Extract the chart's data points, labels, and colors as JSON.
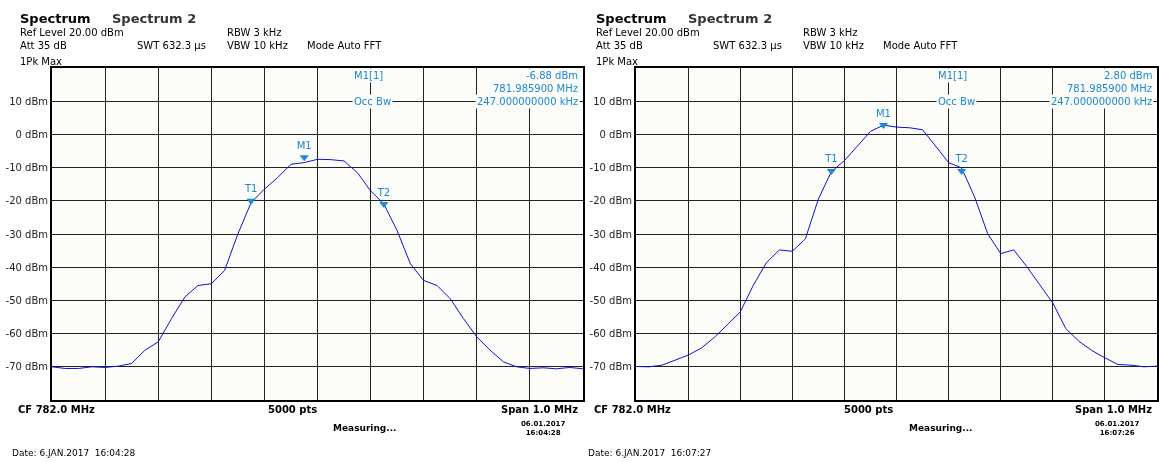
{
  "chart_data": [
    {
      "type": "line",
      "categories": [
        null,
        null,
        null,
        null,
        null,
        null,
        null,
        null,
        null,
        null,
        null,
        null,
        null,
        null,
        null,
        null,
        null,
        null,
        null,
        null,
        null,
        null,
        null,
        null,
        null,
        null,
        null,
        null,
        null,
        null,
        null,
        null,
        null,
        null,
        null,
        null,
        null,
        null,
        null,
        null,
        null
      ],
      "series": [
        {
          "color": "#1010e0",
          "values": [
            -70,
            -70.5,
            -70.5,
            -70,
            -70.2,
            -69.8,
            -69,
            -65,
            -62.5,
            -55.5,
            -49,
            -45.5,
            -45,
            -41,
            -30,
            -20.5,
            -16.5,
            -13,
            -9,
            -8.5,
            -7.5,
            -7.6,
            -8,
            -11.5,
            -17,
            -21,
            -29,
            -39,
            -44,
            -45.5,
            -49.5,
            -55.5,
            -61,
            -65,
            -68.5,
            -70,
            -70.5,
            -70.3,
            -70.6,
            -70.2,
            -70.6
          ]
        },
        {
          "type": "scatter",
          "color": "#1a8ad4",
          "marker": "triangle",
          "values": [
            null,
            null,
            null,
            null,
            null,
            null,
            null,
            null,
            null,
            null,
            null,
            null,
            null,
            null,
            null,
            -20,
            null,
            null,
            null,
            -6.88,
            null,
            null,
            null,
            null,
            null,
            -21,
            null,
            null,
            null,
            null,
            null,
            null,
            null,
            null,
            null,
            null,
            null,
            null,
            null,
            null,
            null
          ],
          "value_labels": [
            null,
            null,
            null,
            null,
            null,
            null,
            null,
            null,
            null,
            null,
            null,
            null,
            null,
            null,
            null,
            "T1",
            null,
            null,
            null,
            "M1",
            null,
            null,
            null,
            null,
            null,
            "T2",
            null,
            null,
            null,
            null,
            null,
            null,
            null,
            null,
            null,
            null,
            null,
            null,
            null,
            null,
            null
          ]
        }
      ],
      "ylim": [
        -80,
        20
      ],
      "yticks": [
        {
          "value": 10,
          "label": "10 dBm"
        },
        {
          "value": 0,
          "label": "0 dBm"
        },
        {
          "value": -10,
          "label": "-10 dBm"
        },
        {
          "value": -20,
          "label": "-20 dBm"
        },
        {
          "value": -30,
          "label": "-30 dBm"
        },
        {
          "value": -40,
          "label": "-40 dBm"
        },
        {
          "value": -50,
          "label": "-50 dBm"
        },
        {
          "value": -60,
          "label": "-60 dBm"
        },
        {
          "value": -70,
          "label": "-70 dBm"
        }
      ],
      "grid": true,
      "tick_labels": "y",
      "annotations": [
        "Spectrum",
        "Spectrum 2",
        "Ref Level 20.00 dBm",
        "Att 35 dB",
        "SWT 632.3 µs",
        "RBW 3 kHz",
        "VBW 10 kHz",
        "Mode Auto FFT",
        "1Pk Max",
        "M1[1]",
        "-6.88 dBm",
        "781.985900 MHz",
        "Occ Bw",
        "247.000000000 kHz",
        "CF 782.0 MHz",
        "5000 pts",
        "Span 1.0 MHz",
        "Measuring...",
        "06.01.2017\n16:04:28",
        "Date: 6.JAN.2017  16:04:28"
      ]
    },
    {
      "type": "line",
      "categories": [
        null,
        null,
        null,
        null,
        null,
        null,
        null,
        null,
        null,
        null,
        null,
        null,
        null,
        null,
        null,
        null,
        null,
        null,
        null,
        null,
        null,
        null,
        null,
        null,
        null,
        null,
        null,
        null,
        null,
        null,
        null,
        null,
        null,
        null,
        null,
        null,
        null,
        null,
        null,
        null,
        null
      ],
      "series": [
        {
          "color": "#1010e0",
          "values": [
            -69.9,
            -70,
            -69.5,
            -68,
            -66.5,
            -64.4,
            -61.2,
            -57.4,
            -53.5,
            -45.5,
            -38.7,
            -34.8,
            -35.2,
            -31.5,
            -19.5,
            -11.2,
            -7.9,
            -3.5,
            0.9,
            2.8,
            2.2,
            2,
            1.4,
            -3.5,
            -8.5,
            -10.1,
            -18.9,
            -29.9,
            -35.9,
            -34.8,
            -39.8,
            -45.3,
            -50.8,
            -58.5,
            -62.3,
            -65.1,
            -67.3,
            -69.3,
            -69.5,
            -70,
            -69.8
          ]
        },
        {
          "type": "scatter",
          "color": "#1a8ad4",
          "marker": "triangle",
          "values": [
            null,
            null,
            null,
            null,
            null,
            null,
            null,
            null,
            null,
            null,
            null,
            null,
            null,
            null,
            null,
            -11,
            null,
            null,
            null,
            2.8,
            null,
            null,
            null,
            null,
            null,
            -11,
            null,
            null,
            null,
            null,
            null,
            null,
            null,
            null,
            null,
            null,
            null,
            null,
            null,
            null,
            null
          ],
          "value_labels": [
            null,
            null,
            null,
            null,
            null,
            null,
            null,
            null,
            null,
            null,
            null,
            null,
            null,
            null,
            null,
            "T1",
            null,
            null,
            null,
            "M1",
            null,
            null,
            null,
            null,
            null,
            "T2",
            null,
            null,
            null,
            null,
            null,
            null,
            null,
            null,
            null,
            null,
            null,
            null,
            null,
            null,
            null
          ]
        }
      ],
      "ylim": [
        -80,
        20
      ],
      "yticks": [
        {
          "value": 10,
          "label": "10 dBm"
        },
        {
          "value": 0,
          "label": "0 dBm"
        },
        {
          "value": -10,
          "label": "-10 dBm"
        },
        {
          "value": -20,
          "label": "-20 dBm"
        },
        {
          "value": -30,
          "label": "-30 dBm"
        },
        {
          "value": -40,
          "label": "-40 dBm"
        },
        {
          "value": -50,
          "label": "-50 dBm"
        },
        {
          "value": -60,
          "label": "-60 dBm"
        },
        {
          "value": -70,
          "label": "-70 dBm"
        }
      ],
      "grid": true,
      "tick_labels": "y",
      "annotations": [
        "Spectrum",
        "Spectrum 2",
        "Ref Level 20.00 dBm",
        "Att 35 dB",
        "SWT 632.3 µs",
        "RBW 3 kHz",
        "VBW 10 kHz",
        "Mode Auto FFT",
        "1Pk Max",
        "M1[1]",
        "2.80 dBm",
        "781.985900 MHz",
        "Occ Bw",
        "247.000000000 kHz",
        "CF 782.0 MHz",
        "5000 pts",
        "Span 1.0 MHz",
        "Measuring...",
        "06.01.2017\n16:07:26",
        "Date: 6.JAN.2017  16:07:27"
      ]
    }
  ]
}
